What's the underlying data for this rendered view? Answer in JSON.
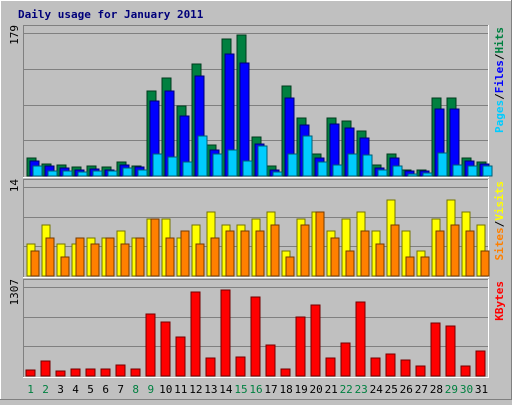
{
  "chart_data": {
    "type": "bar",
    "title": "Daily usage for January 2011",
    "categories": [
      "1",
      "2",
      "3",
      "4",
      "5",
      "6",
      "7",
      "8",
      "9",
      "10",
      "11",
      "12",
      "13",
      "14",
      "15",
      "16",
      "17",
      "18",
      "19",
      "20",
      "21",
      "22",
      "23",
      "24",
      "25",
      "26",
      "27",
      "28",
      "29",
      "30",
      "31"
    ],
    "weekend_days": [
      "1",
      "2",
      "8",
      "9",
      "15",
      "16",
      "22",
      "23",
      "29",
      "30"
    ],
    "panels": [
      {
        "name": "top",
        "ymax_label": "179",
        "ylim": [
          0,
          179
        ],
        "right_label": [
          "Pages",
          "/",
          "Files",
          "/",
          "Hits"
        ],
        "right_label_colors": [
          "#00ccff",
          "#000000",
          "#0000ff",
          "#000000",
          "#008040"
        ],
        "series": [
          {
            "name": "Hits",
            "color": "#008040",
            "values": [
              22,
              15,
              14,
              11,
              13,
              11,
              18,
              13,
              107,
              123,
              87,
              140,
              39,
              171,
              177,
              49,
              12,
              113,
              73,
              28,
              73,
              69,
              56,
              14,
              27,
              8,
              8,
              98,
              98,
              23,
              18
            ]
          },
          {
            "name": "Files",
            "color": "#0000ff",
            "values": [
              19,
              12,
              10,
              8,
              9,
              8,
              14,
              11,
              94,
              107,
              75,
              125,
              32,
              153,
              141,
              40,
              8,
              98,
              64,
              22,
              65,
              60,
              48,
              10,
              22,
              6,
              6,
              84,
              84,
              19,
              15
            ]
          },
          {
            "name": "Pages",
            "color": "#00ccff",
            "values": [
              12,
              6,
              6,
              5,
              6,
              6,
              10,
              8,
              27,
              24,
              18,
              50,
              27,
              32,
              19,
              38,
              5,
              27,
              50,
              17,
              14,
              27,
              26,
              8,
              12,
              3,
              4,
              29,
              14,
              13,
              12
            ]
          }
        ]
      },
      {
        "name": "middle",
        "ymax_label": "14",
        "ylim": [
          0,
          14
        ],
        "right_label": [
          "Sites",
          "/",
          "Visits"
        ],
        "right_label_colors": [
          "#ff8000",
          "#000000",
          "#ffff00"
        ],
        "series": [
          {
            "name": "Visits",
            "color": "#ffff00",
            "values": [
              5,
              8,
              5,
              5,
              6,
              6,
              7,
              6,
              9,
              9,
              6,
              8,
              10,
              8,
              8,
              9,
              10,
              4,
              9,
              10,
              7,
              9,
              10,
              7,
              12,
              7,
              4,
              9,
              12,
              10,
              8
            ]
          },
          {
            "name": "Sites",
            "color": "#ff8000",
            "values": [
              4,
              6,
              3,
              6,
              5,
              6,
              5,
              6,
              9,
              6,
              7,
              5,
              6,
              7,
              7,
              7,
              8,
              3,
              8,
              10,
              6,
              4,
              7,
              5,
              8,
              3,
              3,
              7,
              8,
              7,
              4
            ]
          }
        ]
      },
      {
        "name": "bottom",
        "ymax_label": "1307",
        "ylim": [
          0,
          1307
        ],
        "right_label": [
          "KBytes"
        ],
        "right_label_colors": [
          "#ff0000"
        ],
        "series": [
          {
            "name": "KBytes",
            "color": "#ff0000",
            "values": [
              90,
              220,
              70,
              110,
              110,
              110,
              160,
              110,
              910,
              790,
              570,
              1240,
              270,
              1260,
              280,
              1160,
              460,
              110,
              860,
              1040,
              270,
              480,
              1090,
              260,
              330,
              230,
              140,
              780,
              730,
              150,
              370
            ]
          }
        ]
      }
    ],
    "grid": true
  }
}
